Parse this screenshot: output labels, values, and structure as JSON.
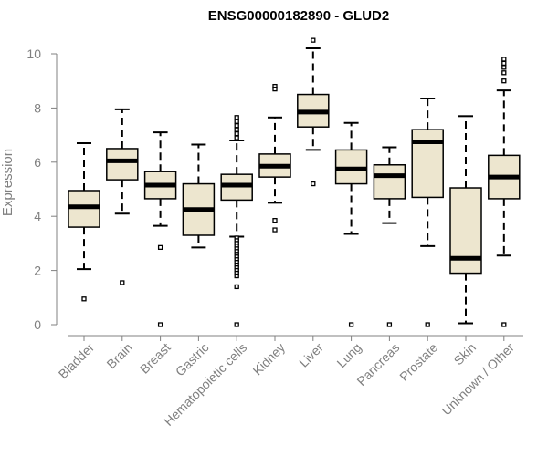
{
  "chart_data": {
    "type": "boxplot",
    "title": "ENSG00000182890 - GLUD2",
    "xlabel": "",
    "ylabel": "Expression",
    "ylim": [
      0,
      10.6
    ],
    "yticks": [
      0,
      2,
      4,
      6,
      8,
      10
    ],
    "grid": false,
    "colors": {
      "box_fill": "#ede6cf",
      "stroke": "#000000",
      "axis": "#808080",
      "text": "#808080"
    },
    "categories": [
      "Bladder",
      "Brain",
      "Breast",
      "Gastric",
      "Hematopoietic cells",
      "Kidney",
      "Liver",
      "Lung",
      "Pancreas",
      "Prostate",
      "Skin",
      "Unknown / Other"
    ],
    "boxes": [
      {
        "label": "Bladder",
        "whisker_low": 2.05,
        "q1": 3.6,
        "median": 4.35,
        "q3": 4.95,
        "whisker_high": 6.7,
        "outliers": [
          0.95
        ]
      },
      {
        "label": "Brain",
        "whisker_low": 4.1,
        "q1": 5.35,
        "median": 6.05,
        "q3": 6.5,
        "whisker_high": 7.95,
        "outliers": [
          1.55
        ]
      },
      {
        "label": "Breast",
        "whisker_low": 3.65,
        "q1": 4.65,
        "median": 5.15,
        "q3": 5.65,
        "whisker_high": 7.1,
        "outliers": [
          2.85,
          0.0
        ]
      },
      {
        "label": "Gastric",
        "whisker_low": 2.85,
        "q1": 3.3,
        "median": 4.25,
        "q3": 5.2,
        "whisker_high": 6.65,
        "outliers": []
      },
      {
        "label": "Hematopoietic cells",
        "whisker_low": 3.25,
        "q1": 4.6,
        "median": 5.15,
        "q3": 5.55,
        "whisker_high": 6.8,
        "outliers": [
          7.65,
          7.5,
          7.35,
          7.2,
          7.05,
          6.9,
          3.2,
          3.1,
          3.0,
          2.9,
          2.8,
          2.7,
          2.6,
          2.5,
          2.4,
          2.3,
          2.2,
          2.1,
          2.0,
          1.9,
          1.8,
          1.4,
          0.0
        ]
      },
      {
        "label": "Kidney",
        "whisker_low": 4.5,
        "q1": 5.45,
        "median": 5.85,
        "q3": 6.3,
        "whisker_high": 7.65,
        "outliers": [
          8.8,
          8.7,
          3.85,
          3.5
        ]
      },
      {
        "label": "Liver",
        "whisker_low": 6.45,
        "q1": 7.3,
        "median": 7.85,
        "q3": 8.5,
        "whisker_high": 10.2,
        "outliers": [
          10.5,
          5.2
        ]
      },
      {
        "label": "Lung",
        "whisker_low": 3.35,
        "q1": 5.2,
        "median": 5.75,
        "q3": 6.45,
        "whisker_high": 7.45,
        "outliers": [
          0.0
        ]
      },
      {
        "label": "Pancreas",
        "whisker_low": 3.75,
        "q1": 4.65,
        "median": 5.5,
        "q3": 5.9,
        "whisker_high": 6.55,
        "outliers": [
          0.0
        ]
      },
      {
        "label": "Prostate",
        "whisker_low": 2.9,
        "q1": 4.7,
        "median": 6.75,
        "q3": 7.2,
        "whisker_high": 8.35,
        "outliers": [
          0.0
        ]
      },
      {
        "label": "Skin",
        "whisker_low": 0.05,
        "q1": 1.9,
        "median": 2.45,
        "q3": 5.05,
        "whisker_high": 7.7,
        "outliers": []
      },
      {
        "label": "Unknown / Other",
        "whisker_low": 2.55,
        "q1": 4.65,
        "median": 5.45,
        "q3": 6.25,
        "whisker_high": 8.65,
        "outliers": [
          9.8,
          9.65,
          9.5,
          9.3,
          9.0,
          0.0
        ]
      }
    ]
  }
}
